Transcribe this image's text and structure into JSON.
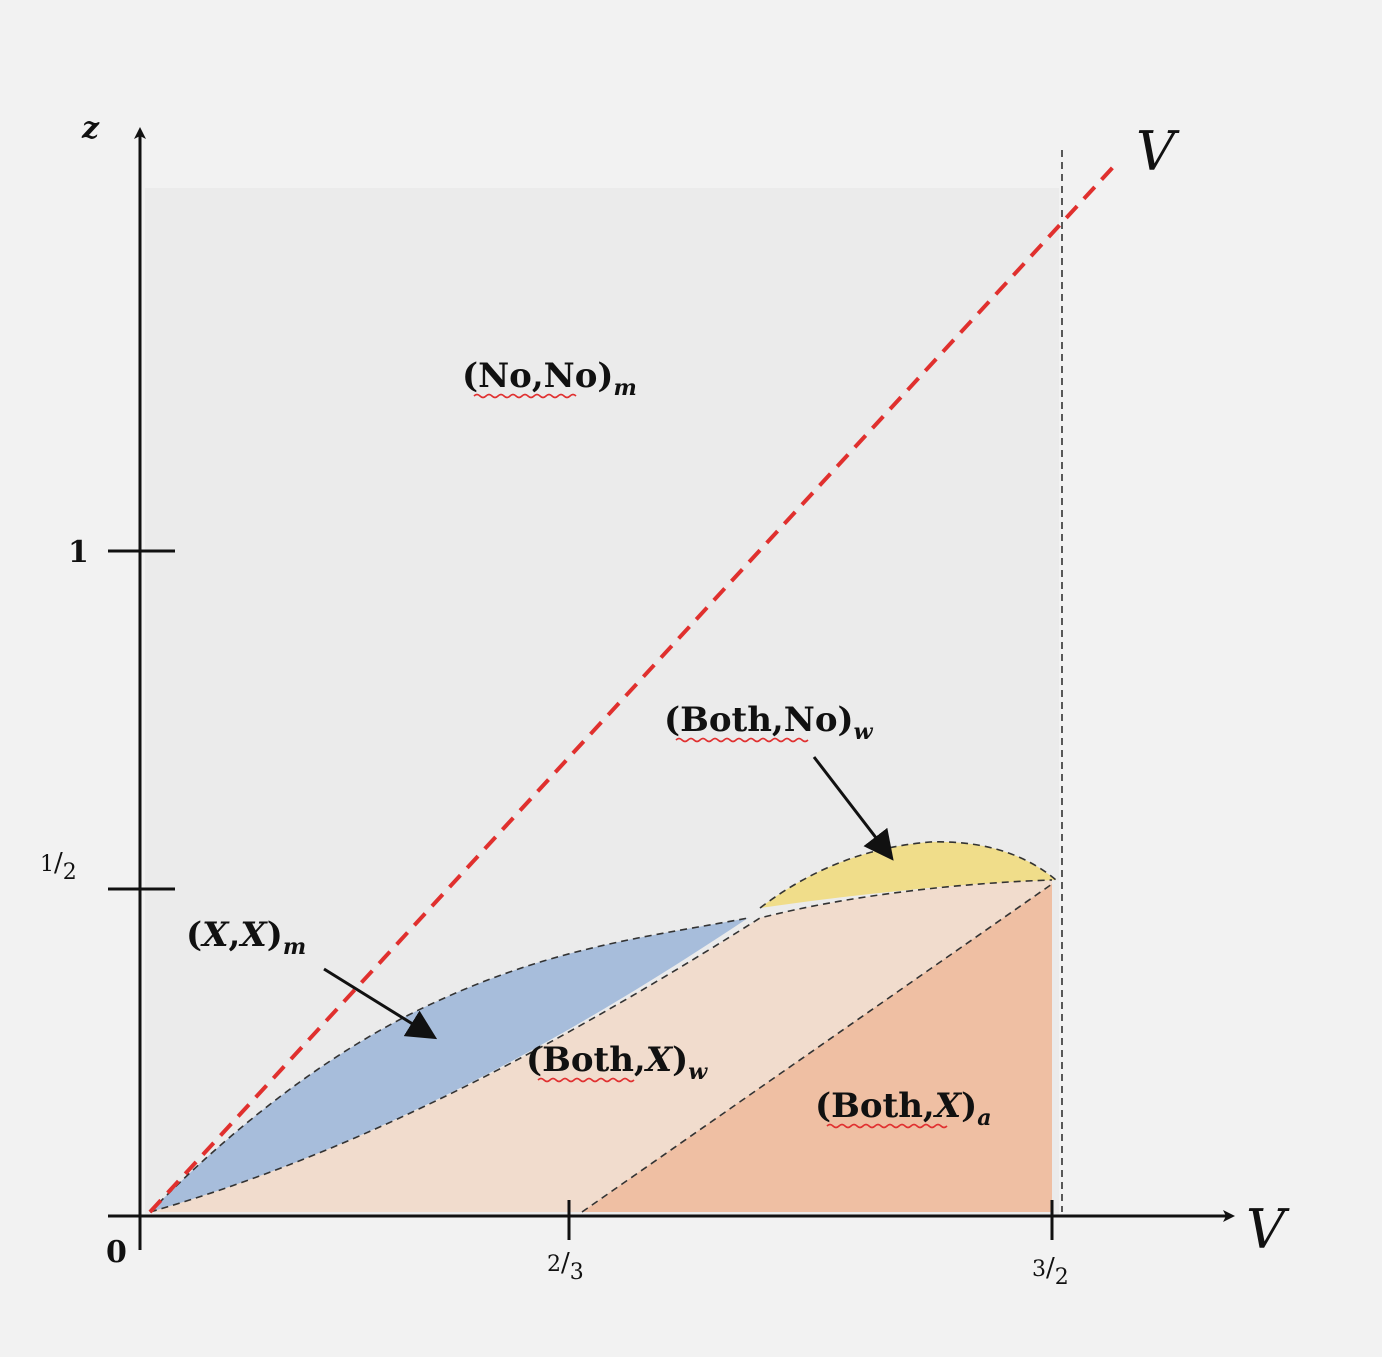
{
  "axes": {
    "x_label": "V",
    "y_label": "z",
    "diag_label": "V",
    "origin": "0",
    "x_ticks": [
      {
        "num": "2",
        "den": "3"
      },
      {
        "num": "3",
        "den": "2"
      }
    ],
    "y_ticks": [
      {
        "text": "1"
      },
      {
        "num": "1",
        "den": "2"
      }
    ]
  },
  "regions": {
    "no_no_m": {
      "open": "(No,No)",
      "sub": "m"
    },
    "both_no_w": {
      "open": "(Both,No)",
      "sub": "w"
    },
    "x_x_m": {
      "pre": "(",
      "a": "X",
      "mid": ",",
      "b": "X",
      "post": ")",
      "sub": "m"
    },
    "both_x_w": {
      "pre": "(Both,",
      "a": "X",
      "post": ")",
      "sub": "w"
    },
    "both_x_a": {
      "pre": "(Both,",
      "a": "X",
      "post": ")",
      "sub": "a"
    }
  },
  "colors": {
    "background": "#f2f2f2",
    "plot_area": "#ebebeb",
    "diagonal": "#e0302e",
    "region_both_no_w": "#f0dd8a",
    "region_x_x_m": "#a7bddb",
    "region_both_x_w": "#f1dccd",
    "region_both_x_a": "#efbfa3"
  }
}
